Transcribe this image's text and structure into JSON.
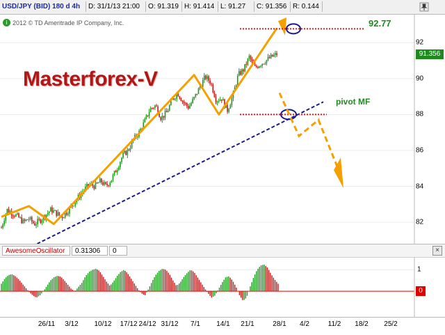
{
  "status_bar": {
    "cells": [
      "USD/JPY (BID) 180 d 4h",
      "D: 31/1/13 21:00",
      "O: 91.319",
      "H: 91.414",
      "L: 91.27",
      "C: 91.356",
      "R: 0.144"
    ],
    "pin_icon": "pin-icon"
  },
  "copyright": "2012 © TD Ameritrade IP Company, Inc.",
  "brand_title": "Masterforex-V",
  "annotations": {
    "target": "92.77",
    "pivot": "pivot MF"
  },
  "price_axis": {
    "ticks": [
      "92",
      "90",
      "88",
      "86",
      "84",
      "82"
    ],
    "current_price": "91.356"
  },
  "oscillator": {
    "name": "AwesomeOscillator",
    "value": "0.31306",
    "extra": "0",
    "close_icon": "close-icon",
    "axis_top": "1",
    "zero_label": "0"
  },
  "date_axis": {
    "labels": [
      "26/11",
      "3/12",
      "10/12",
      "17/12",
      "24/12",
      "31/12",
      "7/1",
      "14/1",
      "21/1",
      "28/1",
      "4/2",
      "11/2",
      "18/2",
      "25/2"
    ]
  },
  "colors": {
    "up_candle": "#1a9a1a",
    "down_candle": "#c81818",
    "trend_line": "#f5a000",
    "support_line": "#1a1a8c",
    "level_line": "#e01a1a",
    "highlight_circle": "#1a1a8c"
  },
  "chart_data": {
    "type": "candlestick",
    "symbol": "USD/JPY",
    "ylim": [
      80.8,
      93.6
    ],
    "yticks": [
      82,
      84,
      86,
      88,
      90,
      92
    ],
    "x_categories": [
      "26/11",
      "3/12",
      "10/12",
      "17/12",
      "24/12",
      "31/12",
      "7/1",
      "14/1",
      "21/1",
      "28/1",
      "4/2",
      "11/2",
      "18/2",
      "25/2"
    ],
    "close_path": [
      [
        0,
        81.7
      ],
      [
        2,
        82.7
      ],
      [
        4,
        82.5
      ],
      [
        6,
        82.3
      ],
      [
        8,
        82.0
      ],
      [
        10,
        82.2
      ],
      [
        12,
        81.9
      ],
      [
        14,
        82.1
      ],
      [
        16,
        82.4
      ],
      [
        18,
        82.7
      ],
      [
        20,
        82.5
      ],
      [
        22,
        82.3
      ],
      [
        24,
        82.6
      ],
      [
        26,
        83.0
      ],
      [
        28,
        83.4
      ],
      [
        30,
        83.8
      ],
      [
        32,
        84.1
      ],
      [
        34,
        84.0
      ],
      [
        36,
        84.3
      ],
      [
        38,
        84.0
      ],
      [
        40,
        84.4
      ],
      [
        42,
        85.0
      ],
      [
        44,
        85.7
      ],
      [
        46,
        86.0
      ],
      [
        48,
        86.6
      ],
      [
        50,
        87.0
      ],
      [
        52,
        87.6
      ],
      [
        54,
        88.3
      ],
      [
        56,
        88.5
      ],
      [
        58,
        87.8
      ],
      [
        60,
        88.1
      ],
      [
        62,
        88.8
      ],
      [
        64,
        89.2
      ],
      [
        66,
        88.7
      ],
      [
        68,
        88.4
      ],
      [
        70,
        88.9
      ],
      [
        72,
        89.5
      ],
      [
        74,
        90.1
      ],
      [
        76,
        89.8
      ],
      [
        78,
        88.8
      ],
      [
        80,
        88.9
      ],
      [
        82,
        88.2
      ],
      [
        84,
        89.0
      ],
      [
        86,
        90.2
      ],
      [
        88,
        90.5
      ],
      [
        90,
        91.2
      ],
      [
        92,
        90.6
      ],
      [
        94,
        90.8
      ],
      [
        96,
        91.0
      ],
      [
        98,
        91.2
      ],
      [
        100,
        91.36
      ]
    ],
    "annotation_levels": {
      "target": 92.77,
      "pivot": 88.0
    },
    "oscillator_ylim": [
      -1.2,
      1.6
    ],
    "oscillator_values": [
      0.35,
      0.6,
      0.75,
      0.8,
      0.7,
      0.55,
      0.35,
      0.15,
      -0.05,
      -0.2,
      -0.3,
      -0.2,
      0.0,
      0.25,
      0.5,
      0.65,
      0.72,
      0.68,
      0.5,
      0.3,
      0.1,
      0.0,
      0.2,
      0.4,
      0.7,
      0.9,
      1.0,
      1.05,
      0.95,
      0.7,
      0.45,
      0.25,
      0.45,
      0.7,
      0.9,
      1.0,
      0.85,
      0.6,
      0.35,
      0.1,
      -0.1,
      -0.2,
      0.1,
      0.45,
      0.75,
      0.95,
      1.05,
      1.0,
      0.8,
      0.5,
      0.25,
      0.4,
      0.65,
      0.85,
      1.0,
      0.9,
      0.65,
      0.4,
      0.15,
      -0.1,
      -0.3,
      -0.2,
      0.1,
      0.4,
      0.65,
      0.7,
      0.5,
      0.2,
      -0.2,
      -0.45,
      -0.3,
      0.2,
      0.65,
      1.0,
      1.2,
      1.25,
      1.1,
      0.8,
      0.55,
      0.35
    ]
  }
}
